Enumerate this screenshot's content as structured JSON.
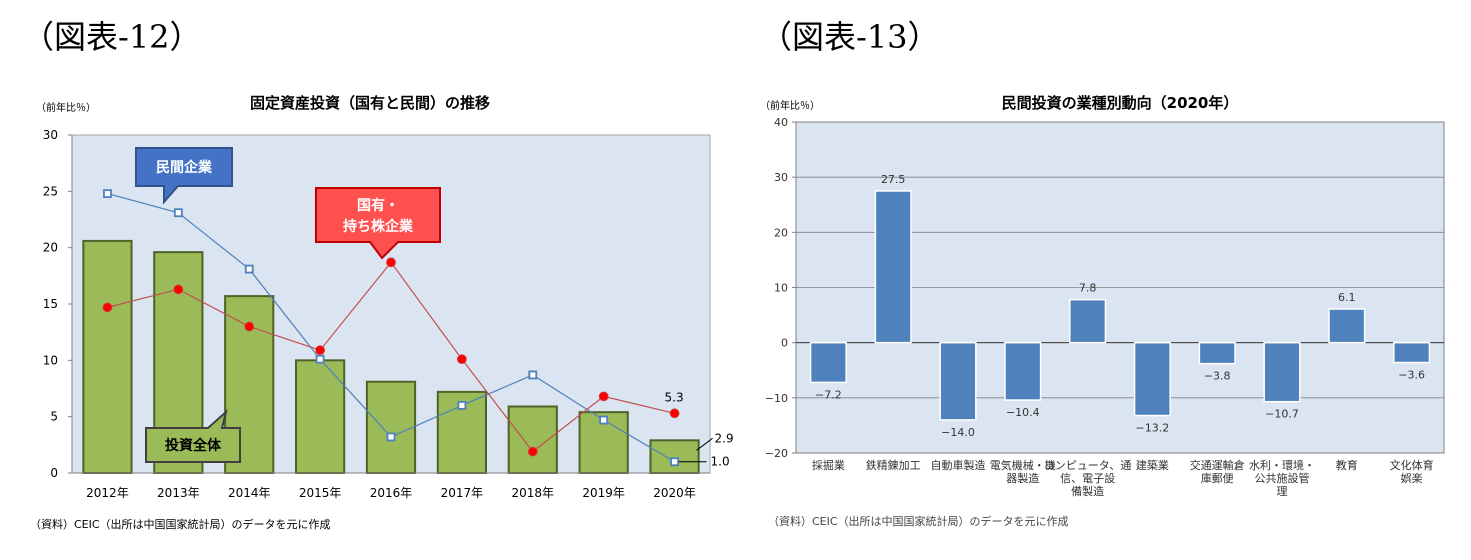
{
  "figure12": {
    "label": "（図表-12）",
    "source": "（資料）CEIC（出所は中国国家統計局）のデータを元に作成"
  },
  "figure13": {
    "label": "（図表-13）",
    "source": "（資料）CEIC（出所は中国国家統計局）のデータを元に作成"
  },
  "colors": {
    "plot_bg": "#dbe5f1",
    "bar_green": "#9bbb59",
    "bar_green_border": "#4f6228",
    "line_blue": "#4f81bd",
    "line_red": "#c0504d",
    "marker_red": "#ff0000",
    "bar_blue": "#4f81bd",
    "callout_blue": "#4472c4",
    "callout_red": "#ff5050",
    "callout_green": "#9bbb59"
  },
  "chart_data": [
    {
      "type": "bar",
      "title": "固定資産投資（国有と民間）の推移",
      "ylabel": "（前年比％）",
      "xlabel": "",
      "ylim": [
        0,
        30
      ],
      "yticks": [
        "0",
        "5",
        "10",
        "15",
        "20",
        "25",
        "30"
      ],
      "categories": [
        "2012年",
        "2013年",
        "2014年",
        "2015年",
        "2016年",
        "2017年",
        "2018年",
        "2019年",
        "2020年"
      ],
      "series": [
        {
          "name": "投資全体",
          "type": "bar",
          "values": [
            20.6,
            19.6,
            15.7,
            10.0,
            8.1,
            7.2,
            5.9,
            5.4,
            2.9
          ]
        },
        {
          "name": "民間企業",
          "type": "line",
          "values": [
            24.8,
            23.1,
            18.1,
            10.1,
            3.2,
            6.0,
            8.7,
            4.7,
            1.0
          ]
        },
        {
          "name": "国有・\n持ち株企業",
          "type": "line",
          "values": [
            14.7,
            16.3,
            13.0,
            10.9,
            18.7,
            10.1,
            1.9,
            6.8,
            5.3
          ]
        }
      ],
      "callouts": {
        "private": "民間企業",
        "state_line1": "国有・",
        "state_line2": "持ち株企業",
        "total": "投資全体"
      },
      "annotations": [
        "5.3",
        "2.9",
        "1.0"
      ],
      "grid": false
    },
    {
      "type": "bar",
      "title": "民間投資の業種別動向（2020年）",
      "ylabel": "（前年比％）",
      "xlabel": "",
      "ylim": [
        -20,
        40
      ],
      "yticks": [
        "40",
        "30",
        "20",
        "10",
        "0",
        "−10",
        "−20"
      ],
      "categories": [
        [
          "採掘業"
        ],
        [
          "鉄精錬加工"
        ],
        [
          "自動車製造"
        ],
        [
          "電気機械・機",
          "器製造"
        ],
        [
          "コンピュータ、通",
          "信、電子設",
          "備製造"
        ],
        [
          "建築業"
        ],
        [
          "交通運輸倉",
          "庫郵便"
        ],
        [
          "水利・環境・",
          "公共施設管",
          "理"
        ],
        [
          "教育"
        ],
        [
          "文化体育",
          "娯楽"
        ]
      ],
      "values": [
        -7.2,
        27.5,
        -14.0,
        -10.4,
        7.8,
        -13.2,
        -3.8,
        -10.7,
        6.1,
        -3.6
      ],
      "data_labels": [
        "−7.2",
        "27.5",
        "−14.0",
        "−10.4",
        "7.8",
        "−13.2",
        "−3.8",
        "−10.7",
        "6.1",
        "−3.6"
      ],
      "grid": true
    }
  ]
}
